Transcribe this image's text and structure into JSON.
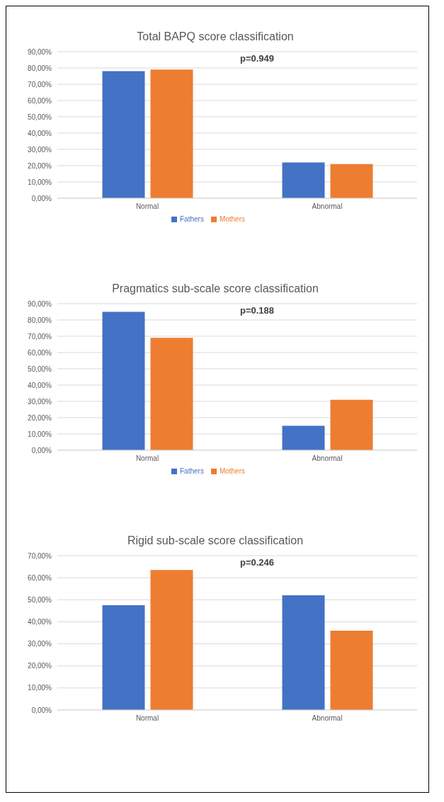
{
  "chart_data": [
    {
      "type": "bar",
      "title": "Total BAPQ score classification",
      "categories": [
        "Normal",
        "Abnormal"
      ],
      "series": [
        {
          "name": "Fathers",
          "color": "#4472c4",
          "values": [
            78,
            22
          ]
        },
        {
          "name": "Mothers",
          "color": "#ed7d31",
          "values": [
            79,
            21
          ]
        }
      ],
      "ylim": [
        0,
        90
      ],
      "yticks": [
        {
          "value": 0,
          "label": "0,00%"
        },
        {
          "value": 10,
          "label": "10,00%"
        },
        {
          "value": 20,
          "label": "20,00%"
        },
        {
          "value": 30,
          "label": "30,00%"
        },
        {
          "value": 40,
          "label": "40,00%"
        },
        {
          "value": 50,
          "label": "50,00%"
        },
        {
          "value": 60,
          "label": "60,00%"
        },
        {
          "value": 70,
          "label": "70,00%"
        },
        {
          "value": 80,
          "label": "80,00%"
        },
        {
          "value": 90,
          "label": "90,00%"
        }
      ],
      "grid": "y",
      "legend": "bottom",
      "annotations": [
        "p=0.949"
      ]
    },
    {
      "type": "bar",
      "title": "Pragmatics sub-scale score classification",
      "categories": [
        "Normal",
        "Abnormal"
      ],
      "series": [
        {
          "name": "Fathers",
          "color": "#4472c4",
          "values": [
            85,
            15
          ]
        },
        {
          "name": "Mothers",
          "color": "#ed7d31",
          "values": [
            69,
            31
          ]
        }
      ],
      "ylim": [
        0,
        90
      ],
      "yticks": [
        {
          "value": 0,
          "label": "0,00%"
        },
        {
          "value": 10,
          "label": "10,00%"
        },
        {
          "value": 20,
          "label": "20,00%"
        },
        {
          "value": 30,
          "label": "30,00%"
        },
        {
          "value": 40,
          "label": "40,00%"
        },
        {
          "value": 50,
          "label": "50,00%"
        },
        {
          "value": 60,
          "label": "60,00%"
        },
        {
          "value": 70,
          "label": "70,00%"
        },
        {
          "value": 80,
          "label": "80,00%"
        },
        {
          "value": 90,
          "label": "90,00%"
        }
      ],
      "grid": "y",
      "legend": "bottom",
      "annotations": [
        "p=0.188"
      ]
    },
    {
      "type": "bar",
      "title": "Rigid sub-scale score classification",
      "categories": [
        "Normal",
        "Abnormal"
      ],
      "series": [
        {
          "color": "#4472c4",
          "values": [
            47.5,
            52
          ]
        },
        {
          "color": "#ed7d31",
          "values": [
            63.5,
            36
          ]
        }
      ],
      "ylim": [
        0,
        70
      ],
      "yticks": [
        {
          "value": 0,
          "label": "0,00%"
        },
        {
          "value": 10,
          "label": "10,00%"
        },
        {
          "value": 20,
          "label": "20,00%"
        },
        {
          "value": 30,
          "label": "30,00%"
        },
        {
          "value": 40,
          "label": "40,00%"
        },
        {
          "value": 50,
          "label": "50,00%"
        },
        {
          "value": 60,
          "label": "60,00%"
        },
        {
          "value": 70,
          "label": "70,00%"
        }
      ],
      "grid": "y",
      "annotations": [
        "p=0.246"
      ]
    }
  ]
}
